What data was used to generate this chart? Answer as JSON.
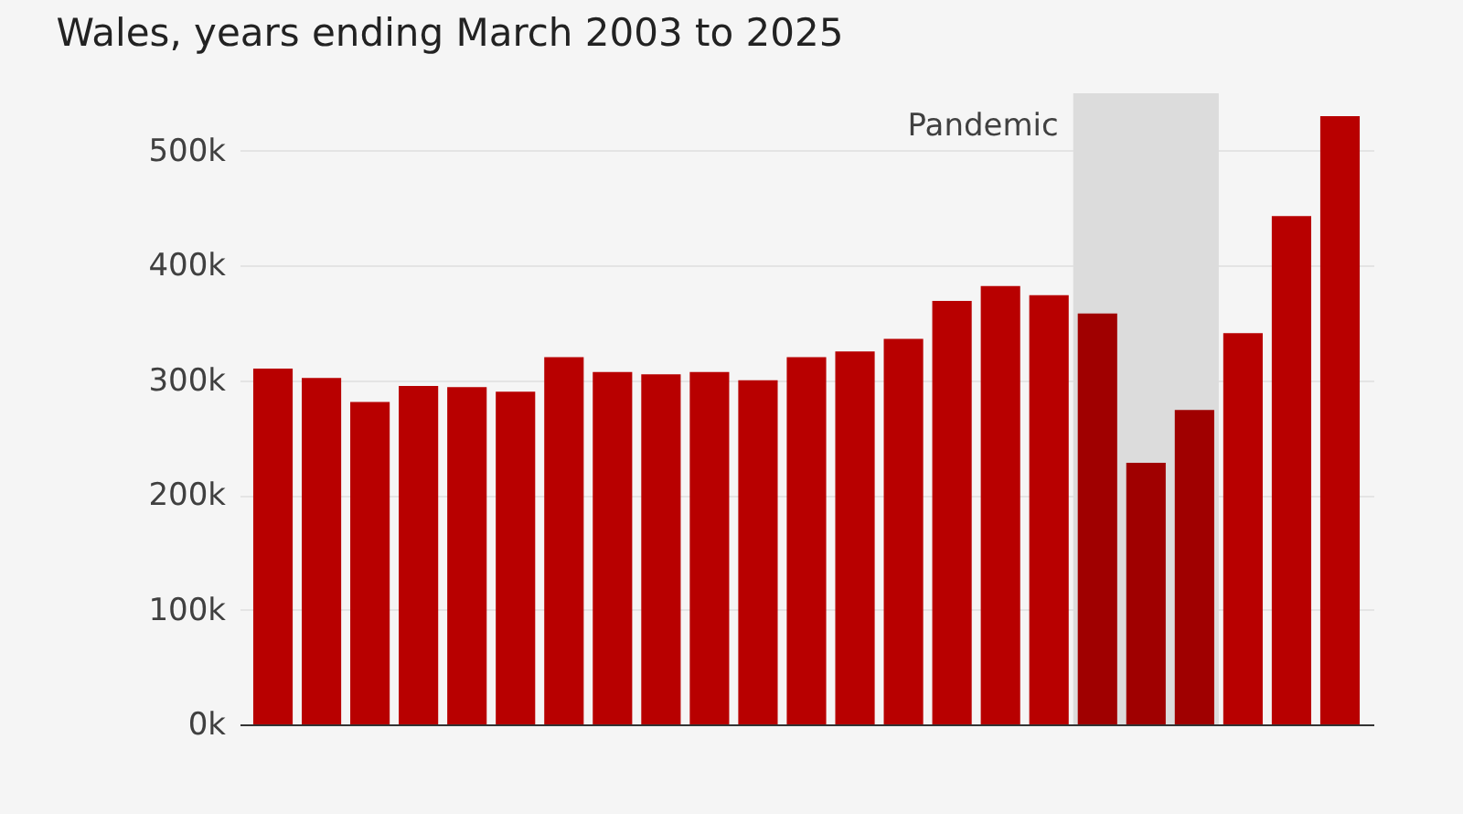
{
  "chart_data": {
    "type": "bar",
    "title": "Wales, years ending March 2003 to 2025",
    "categories": [
      null,
      null,
      null,
      null,
      null,
      null,
      null,
      null,
      null,
      null,
      null,
      null,
      null,
      null,
      null,
      null,
      null,
      null,
      null,
      null,
      null,
      null,
      null
    ],
    "values": [
      310000,
      302000,
      281000,
      295000,
      294000,
      290000,
      320000,
      307000,
      305000,
      307000,
      300000,
      320000,
      325000,
      336000,
      369000,
      382000,
      374000,
      358000,
      228000,
      274000,
      341000,
      443000,
      530000
    ],
    "colors": [
      "#b80000",
      "#b80000",
      "#b80000",
      "#b80000",
      "#b80000",
      "#b80000",
      "#b80000",
      "#b80000",
      "#b80000",
      "#b80000",
      "#b80000",
      "#b80000",
      "#b80000",
      "#b80000",
      "#b80000",
      "#b80000",
      "#b80000",
      "#a00000",
      "#a00000",
      "#a00000",
      "#b80000",
      "#b80000",
      "#b80000"
    ],
    "ylim": [
      0,
      550000
    ],
    "yticks": [
      {
        "value": 0,
        "label": "0k"
      },
      {
        "value": 100000,
        "label": "100k"
      },
      {
        "value": 200000,
        "label": "200k"
      },
      {
        "value": 300000,
        "label": "300k"
      },
      {
        "value": 400000,
        "label": "400k"
      },
      {
        "value": 500000,
        "label": "500k"
      }
    ],
    "annotations": [
      "Pandemic"
    ],
    "grid": "y",
    "tick_labels": "y"
  }
}
